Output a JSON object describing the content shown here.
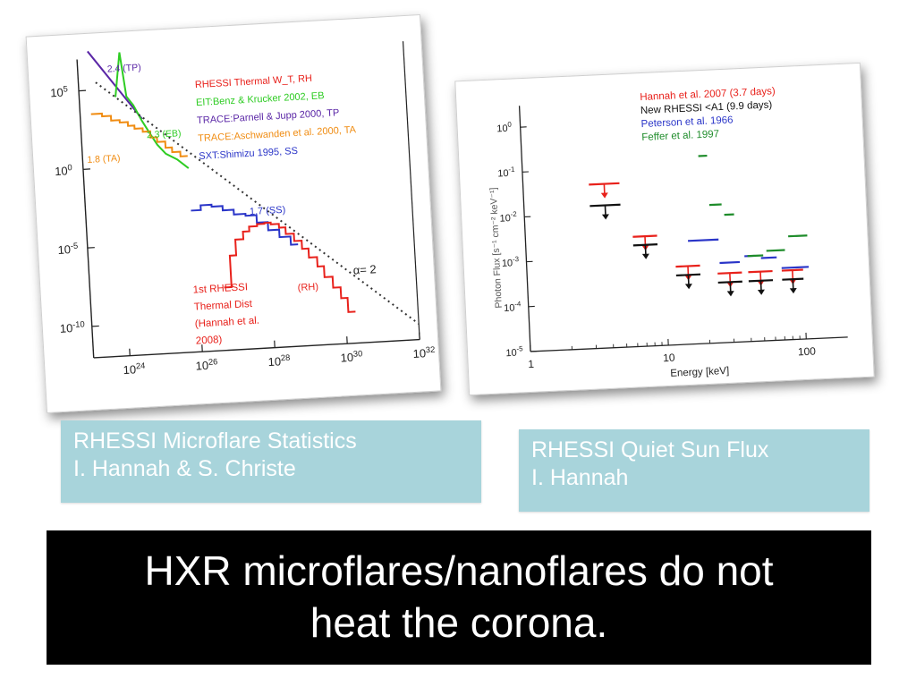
{
  "captions": {
    "left_line1": "RHESSI Microflare Statistics",
    "left_line2": "I. Hannah & S. Christe",
    "right_line1": "RHESSI Quiet Sun Flux",
    "right_line2": "I. Hannah"
  },
  "banner": {
    "line1": "HXR microflares/nanoflares do not",
    "line2": "heat the corona."
  },
  "chart_data": [
    {
      "type": "line",
      "x_scale": "log",
      "y_scale": "log",
      "xlim": [
        1e+23,
        1e+32
      ],
      "ylim": [
        1e-12,
        10000000.0
      ],
      "x_ticks": [
        "10^24",
        "10^26",
        "10^28",
        "10^30",
        "10^32"
      ],
      "y_ticks": [
        "10^5",
        "10^0",
        "10^-5",
        "10^-10"
      ],
      "legend": [
        {
          "text": "RHESSI Thermal W_T, RH",
          "color": "#e8211b"
        },
        {
          "text": "EIT:Benz & Krucker 2002, EB",
          "color": "#2ecc23"
        },
        {
          "text": "TRACE:Parnell & Jupp 2000, TP",
          "color": "#5a26a6"
        },
        {
          "text": "TRACE:Aschwanden et al. 2000, TA",
          "color": "#f08c12"
        },
        {
          "text": "SXT:Shimizu 1995, SS",
          "color": "#2a35c8"
        }
      ],
      "annotations": {
        "tp": "2.4 (TP)",
        "eb": "2.3 (EB)",
        "ta": "1.8 (TA)",
        "ss": "1.7 (SS)",
        "rh": "(RH)",
        "alpha": "α= 2",
        "first_label": [
          "1st RHESSI",
          "Thermal Dist",
          "(Hannah et al.",
          "2008)"
        ]
      },
      "series": [
        {
          "name": "TP",
          "color": "#5a26a6",
          "style": "line",
          "x": [
            2e+23,
            5e+24
          ],
          "y": [
            30000000,
            1000
          ]
        },
        {
          "name": "EB",
          "color": "#2ecc23",
          "style": "line",
          "x": [
            1e+24,
            1.5e+24,
            2e+24,
            3e+24,
            4e+24,
            5e+24,
            8e+24,
            1.2e+25,
            2e+25,
            4e+25,
            8e+25
          ],
          "y": [
            30000,
            20000000,
            30000,
            8000,
            2000,
            700,
            100,
            20,
            5,
            2,
            0.5
          ]
        },
        {
          "name": "TA",
          "color": "#f08c12",
          "style": "step",
          "x": [
            2e+23,
            4e+23,
            7e+23,
            1.2e+24,
            2e+24,
            3e+24,
            5e+24,
            8e+24,
            1.2e+25,
            2e+25,
            3e+25,
            5e+25
          ],
          "y": [
            3000,
            2000,
            1000,
            700,
            400,
            250,
            150,
            60,
            30,
            12,
            6,
            3
          ]
        },
        {
          "name": "SS",
          "color": "#2a35c8",
          "style": "step",
          "x": [
            8e+25,
            1.5e+26,
            3e+26,
            6e+26,
            1.2e+27,
            2.5e+27,
            5e+27,
            1e+28,
            2e+28,
            4e+28
          ],
          "y": [
            0.001,
            0.002,
            0.0015,
            0.0008,
            0.0004,
            0.0003,
            0.0001,
            3e-05,
            1e-05,
            3e-06
          ]
        },
        {
          "name": "RH",
          "color": "#e8211b",
          "style": "step",
          "x": [
            5e+26,
            8e+26,
            1.2e+27,
            2e+27,
            3e+27,
            5e+27,
            8e+27,
            1.2e+28,
            2e+28,
            3e+28,
            5e+28,
            8e+28,
            1.2e+29,
            2e+29,
            3e+29,
            5e+29,
            8e+29,
            1.2e+30
          ],
          "y": [
            1e-08,
            1e-06,
            1e-05,
            3e-05,
            6e-05,
            8e-05,
            9e-05,
            7e-05,
            4e-05,
            1.5e-05,
            5e-06,
            1.5e-06,
            4e-07,
            1e-07,
            2e-08,
            4e-09,
            8e-10,
            1e-10
          ]
        },
        {
          "name": "alpha=2",
          "color": "#333333",
          "style": "dotted",
          "x": [
            3e+23,
            1e+32
          ],
          "y": [
            300000,
            1e-11
          ]
        }
      ]
    },
    {
      "type": "scatter",
      "x_scale": "log",
      "y_scale": "log",
      "xlim": [
        1,
        200
      ],
      "ylim": [
        1e-05,
        3
      ],
      "xlabel": "Energy [keV]",
      "ylabel": "Photon Flux [s⁻¹ cm⁻² keV⁻¹]",
      "x_ticks": [
        "1",
        "10",
        "100"
      ],
      "y_ticks": [
        "10^0",
        "10^-1",
        "10^-2",
        "10^-3",
        "10^-4",
        "10^-5"
      ],
      "legend": [
        {
          "text": "Hannah et al. 2007 (3.7 days)",
          "color": "#e8211b"
        },
        {
          "text": "New RHESSI <A1 (9.9 days)",
          "color": "#111111"
        },
        {
          "text": "Peterson et al. 1966",
          "color": "#2a35c8"
        },
        {
          "text": "Feffer et al. 1997",
          "color": "#1e8c2a"
        }
      ],
      "series": [
        {
          "name": "Hannah et al. 2007 (3.7 days)",
          "color": "#e8211b",
          "kind": "upper_limit",
          "bins": [
            [
              3,
              5
            ],
            [
              6,
              9
            ],
            [
              12,
              18
            ],
            [
              24,
              36
            ],
            [
              40,
              60
            ],
            [
              70,
              100
            ]
          ],
          "y": [
            0.045,
            0.0028,
            0.00055,
            0.00035,
            0.00035,
            0.00035
          ]
        },
        {
          "name": "New RHESSI <A1 (9.9 days)",
          "color": "#111111",
          "kind": "upper_limit",
          "bins": [
            [
              3,
              5
            ],
            [
              6,
              9
            ],
            [
              12,
              18
            ],
            [
              24,
              36
            ],
            [
              40,
              60
            ],
            [
              70,
              100
            ]
          ],
          "y": [
            0.015,
            0.0018,
            0.00035,
            0.00022,
            0.00022,
            0.00022
          ]
        },
        {
          "name": "Peterson et al. 1966",
          "color": "#2a35c8",
          "kind": "segment",
          "bins": [
            [
              15,
              25
            ],
            [
              25,
              35
            ],
            [
              38,
              45
            ],
            [
              50,
              65
            ],
            [
              70,
              110
            ]
          ],
          "y": [
            0.002,
            0.0006,
            0.0008,
            0.0007,
            0.0004
          ]
        },
        {
          "name": "Feffer et al. 1997",
          "color": "#1e8c2a",
          "kind": "segment",
          "bins": [
            [
              19,
              22
            ],
            [
              22,
              27
            ],
            [
              28,
              33
            ],
            [
              40,
              52
            ],
            [
              55,
              75
            ],
            [
              80,
              110
            ]
          ],
          "y": [
            0.15,
            0.012,
            0.007,
            0.0008,
            0.001,
            0.002
          ]
        }
      ]
    }
  ]
}
